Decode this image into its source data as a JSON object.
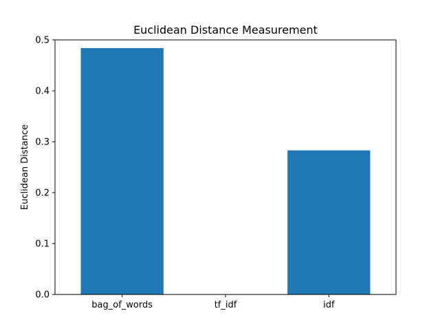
{
  "chart_data": {
    "type": "bar",
    "title": "Euclidean Distance Measurement",
    "xlabel": "",
    "ylabel": "Euclidean Distance",
    "categories": [
      "bag_of_words",
      "tf_idf",
      "idf"
    ],
    "values": [
      0.484,
      0.0,
      0.283
    ],
    "ylim": [
      0,
      0.5
    ],
    "yticks": [
      "0.0",
      "0.1",
      "0.2",
      "0.3",
      "0.4",
      "0.5"
    ],
    "grid": false,
    "legend": "none",
    "colors": {
      "bar": "#1f77b4",
      "axis": "#000000",
      "background": "#ffffff"
    }
  }
}
